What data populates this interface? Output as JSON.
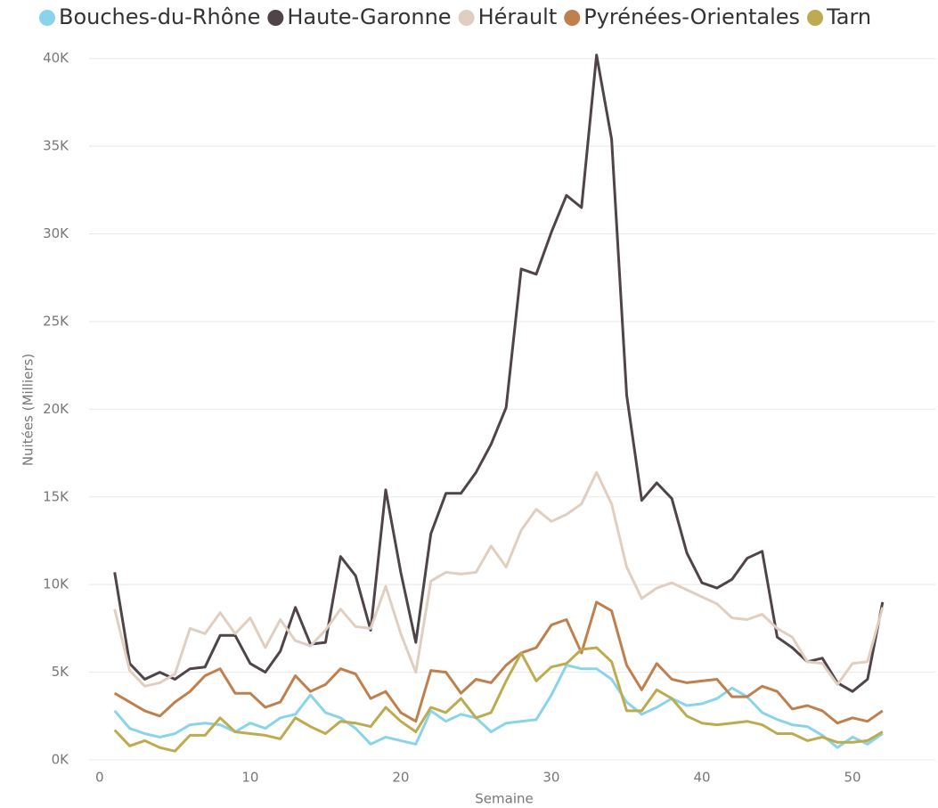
{
  "chart_data": {
    "type": "line",
    "x_label": "Semaine",
    "y_label": "Nuitées (Milliers)",
    "x": [
      1,
      2,
      3,
      4,
      5,
      6,
      7,
      8,
      9,
      10,
      11,
      12,
      13,
      14,
      15,
      16,
      17,
      18,
      19,
      20,
      21,
      22,
      23,
      24,
      25,
      26,
      27,
      28,
      29,
      30,
      31,
      32,
      33,
      34,
      35,
      36,
      37,
      38,
      39,
      40,
      41,
      42,
      43,
      44,
      45,
      46,
      47,
      48,
      49,
      50,
      51,
      52
    ],
    "xlim": [
      -0.7,
      55.5
    ],
    "xticks": [
      0,
      10,
      20,
      30,
      40,
      50
    ],
    "ylim": [
      0,
      40800
    ],
    "yticks": [
      {
        "value": 0,
        "label": "0K"
      },
      {
        "value": 5000,
        "label": "5K"
      },
      {
        "value": 10000,
        "label": "10K"
      },
      {
        "value": 15000,
        "label": "15K"
      },
      {
        "value": 20000,
        "label": "20K"
      },
      {
        "value": 25000,
        "label": "25K"
      },
      {
        "value": 30000,
        "label": "30K"
      },
      {
        "value": 35000,
        "label": "35K"
      },
      {
        "value": 40000,
        "label": "40K"
      }
    ],
    "grid": true,
    "legend": "top",
    "series": [
      {
        "name": "Bouches-du-Rhône",
        "color": "#8AD4EB",
        "values": [
          2800,
          1800,
          1500,
          1300,
          1500,
          2000,
          2100,
          2000,
          1600,
          2100,
          1800,
          2400,
          2600,
          3700,
          2700,
          2400,
          1800,
          900,
          1300,
          1100,
          900,
          2800,
          2200,
          2600,
          2400,
          1600,
          2100,
          2200,
          2300,
          3700,
          5400,
          5200,
          5200,
          4600,
          3300,
          2600,
          3000,
          3500,
          3100,
          3200,
          3500,
          4100,
          3600,
          2700,
          2300,
          2000,
          1900,
          1400,
          700,
          1300,
          900,
          1500
        ]
      },
      {
        "name": "Haute-Garonne",
        "color": "#4F4447",
        "values": [
          10700,
          5500,
          4600,
          5000,
          4600,
          5200,
          5300,
          7100,
          7100,
          5500,
          5000,
          6200,
          8700,
          6600,
          6700,
          11600,
          10500,
          7400,
          15400,
          10700,
          6700,
          12900,
          15200,
          15200,
          16400,
          18000,
          20100,
          28000,
          27700,
          30100,
          32200,
          31500,
          40200,
          35400,
          20800,
          14800,
          15800,
          14900,
          11800,
          10100,
          9800,
          10300,
          11500,
          11900,
          7000,
          6400,
          5600,
          5800,
          4400,
          3900,
          4600,
          9000
        ]
      },
      {
        "name": "Hérault",
        "color": "#E0CFC0",
        "values": [
          8600,
          5100,
          4200,
          4400,
          4900,
          7500,
          7200,
          8400,
          7200,
          8100,
          6400,
          8000,
          6800,
          6500,
          7400,
          8600,
          7600,
          7500,
          9900,
          7200,
          5000,
          10200,
          10700,
          10600,
          10700,
          12200,
          11000,
          13100,
          14300,
          13600,
          14000,
          14600,
          16400,
          14600,
          11000,
          9200,
          9800,
          10100,
          9700,
          9300,
          8900,
          8100,
          8000,
          8300,
          7500,
          7000,
          5600,
          5500,
          4300,
          5500,
          5600,
          8700
        ]
      },
      {
        "name": "Pyrénées-Orientales",
        "color": "#C0804E",
        "values": [
          3800,
          3300,
          2800,
          2500,
          3300,
          3900,
          4800,
          5200,
          3800,
          3800,
          3000,
          3300,
          4800,
          3900,
          4300,
          5200,
          4900,
          3500,
          3900,
          2700,
          2200,
          5100,
          5000,
          3800,
          4600,
          4400,
          5400,
          6100,
          6400,
          7700,
          8000,
          6100,
          9000,
          8500,
          5400,
          4000,
          5500,
          4600,
          4400,
          4500,
          4600,
          3600,
          3600,
          4200,
          3900,
          2900,
          3100,
          2800,
          2100,
          2400,
          2200,
          2800
        ]
      },
      {
        "name": "Tarn",
        "color": "#BDAB4F",
        "values": [
          1700,
          800,
          1100,
          700,
          500,
          1400,
          1400,
          2400,
          1600,
          1500,
          1400,
          1200,
          2400,
          1900,
          1500,
          2200,
          2100,
          1900,
          3000,
          2200,
          1600,
          3000,
          2700,
          3500,
          2400,
          2700,
          4500,
          6100,
          4500,
          5300,
          5500,
          6300,
          6400,
          5600,
          2800,
          2800,
          4000,
          3500,
          2500,
          2100,
          2000,
          2100,
          2200,
          2000,
          1500,
          1500,
          1100,
          1300,
          1000,
          1000,
          1100,
          1600
        ]
      }
    ]
  }
}
